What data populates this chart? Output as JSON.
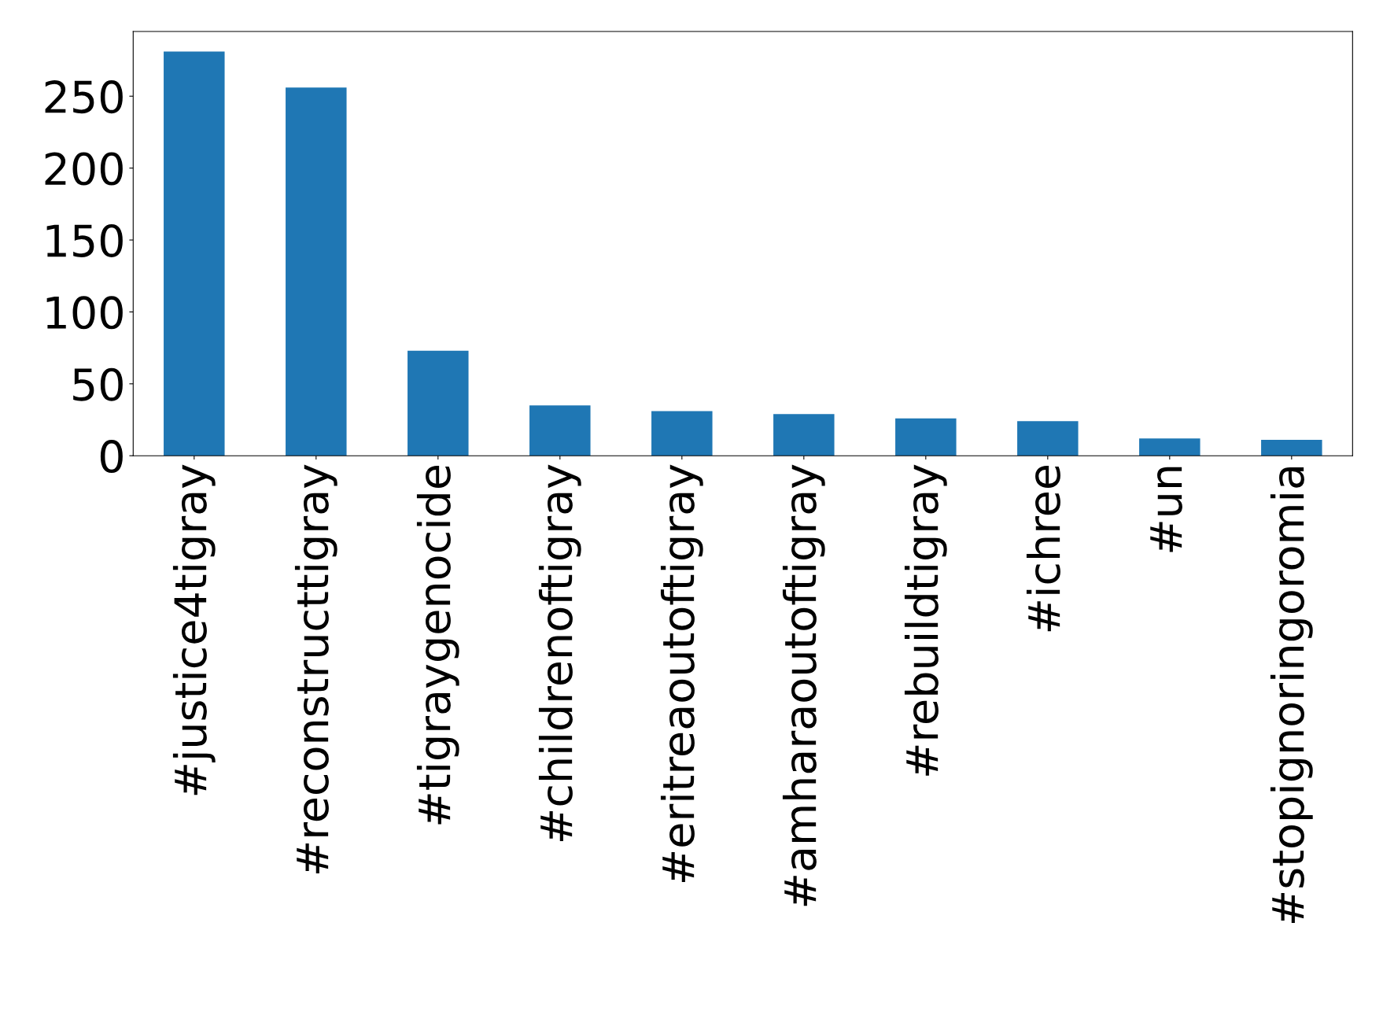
{
  "chart_data": {
    "type": "bar",
    "categories": [
      "#justice4tigray",
      "#reconstructtigray",
      "#tigraygenocide",
      "#childrenoftigray",
      "#eritreaoutoftigray",
      "#amharaoutoftigray",
      "#rebuildtigray",
      "#ichree",
      "#un",
      "#stopignoringoromia"
    ],
    "values": [
      281,
      256,
      73,
      35,
      31,
      29,
      26,
      24,
      12,
      11
    ],
    "color": "#1f77b4",
    "ylim": [
      0,
      295
    ],
    "yticks": [
      0,
      50,
      100,
      150,
      200,
      250
    ],
    "grid": false
  }
}
